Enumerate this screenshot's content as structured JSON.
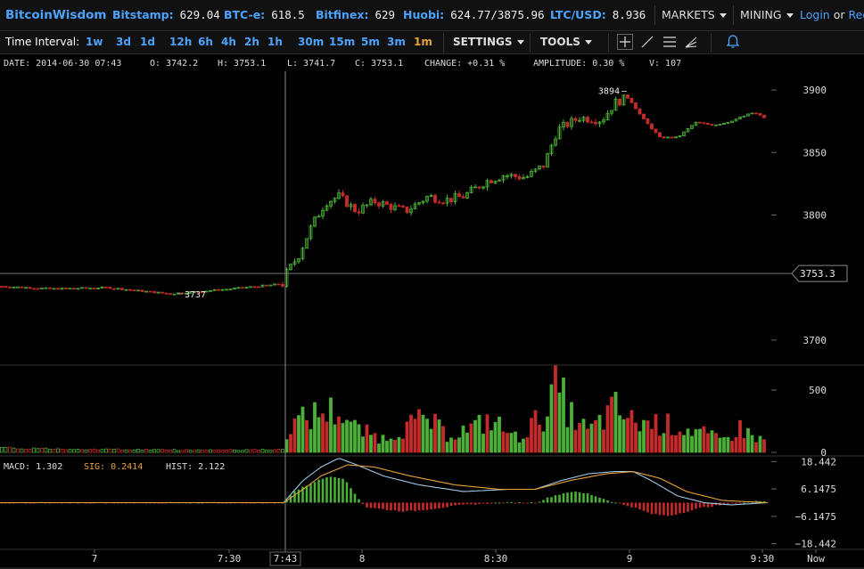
{
  "brand": "BitcoinWisdom",
  "exchanges": [
    {
      "name": "Bitstamp:",
      "price": "629.04"
    },
    {
      "name": "BTC-e:",
      "price": "618.5"
    },
    {
      "name": "Bitfinex:",
      "price": "629"
    },
    {
      "name": "Huobi:",
      "price": "624.77/3875.96"
    },
    {
      "name": "LTC/USD:",
      "price": "8.936"
    }
  ],
  "menus": {
    "markets": "MARKETS",
    "mining": "MINING"
  },
  "auth": {
    "login": "Login",
    "or": "or",
    "register": "Regi"
  },
  "toolbar": {
    "time_interval_label": "Time Interval:",
    "intervals": [
      "1w",
      "3d",
      "1d",
      "12h",
      "6h",
      "4h",
      "2h",
      "1h",
      "30m",
      "15m",
      "5m",
      "3m",
      "1m"
    ],
    "active_interval": "1m",
    "settings": "SETTINGS",
    "tools": "TOOLS"
  },
  "info": {
    "date": "DATE: 2014-06-30 07:43",
    "open": "O: 3742.2",
    "high": "H: 3753.1",
    "low": "L: 3741.7",
    "close": "C: 3753.1",
    "change": "CHANGE: +0.31 %",
    "amplitude": "AMPLITUDE: 0.30 %",
    "volume": "V: 107"
  },
  "colors": {
    "up": "#4caf38",
    "down": "#c42b2b",
    "accent": "#4aa3ff",
    "active": "#e8a33d",
    "macd": "#9ec9e8",
    "signal": "#e8a33d"
  },
  "chart_data": {
    "type": "candlestick",
    "price_axis": {
      "ticks": [
        3700,
        3750,
        3800,
        3850,
        3900
      ],
      "labels": [
        "3700",
        "3753.3",
        "3800",
        "3850",
        "3900"
      ],
      "current": "3753.3",
      "ylim": [
        3680,
        3915
      ]
    },
    "annotations": {
      "high": "3894",
      "low": "3737"
    },
    "volume_axis": {
      "ticks": [
        "0",
        "500"
      ],
      "ylim": [
        0,
        700
      ]
    },
    "macd_axis": {
      "ticks": [
        "18.442",
        "6.1475",
        "−6.1475",
        "−18.442"
      ],
      "ylim": [
        -21,
        21
      ]
    },
    "macd_readout": {
      "macd": "MACD: 1.302",
      "sig": "SIG: 0.2414",
      "hist": "HIST: 2.122"
    },
    "x_labels": [
      "7",
      "7:30",
      "7:43",
      "8",
      "8:30",
      "9",
      "9:30",
      "Now"
    ],
    "price_keypoints": [
      [
        0,
        3743
      ],
      [
        60,
        3741
      ],
      [
        120,
        3742
      ],
      [
        190,
        3737
      ],
      [
        260,
        3741
      ],
      [
        318,
        3745
      ],
      [
        320,
        3752
      ],
      [
        335,
        3768
      ],
      [
        350,
        3792
      ],
      [
        365,
        3810
      ],
      [
        380,
        3815
      ],
      [
        400,
        3803
      ],
      [
        420,
        3811
      ],
      [
        455,
        3803
      ],
      [
        480,
        3815
      ],
      [
        500,
        3812
      ],
      [
        520,
        3815
      ],
      [
        545,
        3827
      ],
      [
        565,
        3832
      ],
      [
        590,
        3830
      ],
      [
        610,
        3840
      ],
      [
        625,
        3868
      ],
      [
        650,
        3878
      ],
      [
        675,
        3876
      ],
      [
        690,
        3890
      ],
      [
        705,
        3894
      ],
      [
        720,
        3878
      ],
      [
        740,
        3862
      ],
      [
        760,
        3862
      ],
      [
        780,
        3874
      ],
      [
        800,
        3872
      ],
      [
        815,
        3874
      ],
      [
        830,
        3878
      ],
      [
        845,
        3882
      ],
      [
        860,
        3877
      ]
    ],
    "volume_keypoints": [
      [
        0,
        35
      ],
      [
        120,
        25
      ],
      [
        200,
        20
      ],
      [
        318,
        22
      ],
      [
        322,
        200
      ],
      [
        340,
        260
      ],
      [
        360,
        320
      ],
      [
        380,
        330
      ],
      [
        400,
        180
      ],
      [
        430,
        110
      ],
      [
        460,
        220
      ],
      [
        480,
        260
      ],
      [
        500,
        140
      ],
      [
        530,
        190
      ],
      [
        550,
        260
      ],
      [
        580,
        110
      ],
      [
        610,
        300
      ],
      [
        625,
        520
      ],
      [
        640,
        300
      ],
      [
        660,
        160
      ],
      [
        690,
        350
      ],
      [
        710,
        240
      ],
      [
        740,
        230
      ],
      [
        780,
        170
      ],
      [
        810,
        90
      ],
      [
        830,
        190
      ],
      [
        850,
        110
      ],
      [
        860,
        80
      ]
    ],
    "macd_keypoints": [
      [
        0,
        0
      ],
      [
        318,
        0
      ],
      [
        340,
        10
      ],
      [
        360,
        16
      ],
      [
        380,
        20
      ],
      [
        400,
        17
      ],
      [
        430,
        12
      ],
      [
        470,
        8
      ],
      [
        520,
        5
      ],
      [
        570,
        6
      ],
      [
        600,
        6
      ],
      [
        630,
        10
      ],
      [
        660,
        13
      ],
      [
        690,
        14
      ],
      [
        710,
        14
      ],
      [
        730,
        10
      ],
      [
        760,
        3
      ],
      [
        790,
        0
      ],
      [
        820,
        -1
      ],
      [
        860,
        0
      ]
    ],
    "signal_keypoints": [
      [
        0,
        0
      ],
      [
        318,
        0
      ],
      [
        340,
        6
      ],
      [
        360,
        12
      ],
      [
        390,
        17
      ],
      [
        420,
        16
      ],
      [
        460,
        12
      ],
      [
        510,
        8
      ],
      [
        560,
        6
      ],
      [
        600,
        6
      ],
      [
        640,
        10
      ],
      [
        680,
        13
      ],
      [
        710,
        14
      ],
      [
        740,
        11
      ],
      [
        770,
        5
      ],
      [
        810,
        1
      ],
      [
        860,
        0
      ]
    ],
    "hist_keypoints": [
      [
        0,
        0
      ],
      [
        318,
        0
      ],
      [
        330,
        5
      ],
      [
        350,
        9
      ],
      [
        370,
        12
      ],
      [
        385,
        11
      ],
      [
        400,
        3
      ],
      [
        410,
        -2
      ],
      [
        430,
        -3
      ],
      [
        455,
        -4
      ],
      [
        480,
        -3
      ],
      [
        500,
        -2
      ],
      [
        520,
        -1
      ],
      [
        560,
        0
      ],
      [
        600,
        0
      ],
      [
        620,
        3
      ],
      [
        640,
        5
      ],
      [
        660,
        4
      ],
      [
        690,
        0
      ],
      [
        710,
        -2
      ],
      [
        730,
        -5
      ],
      [
        750,
        -6
      ],
      [
        770,
        -4
      ],
      [
        790,
        -2
      ],
      [
        810,
        -1
      ],
      [
        830,
        0
      ],
      [
        860,
        1
      ]
    ]
  }
}
